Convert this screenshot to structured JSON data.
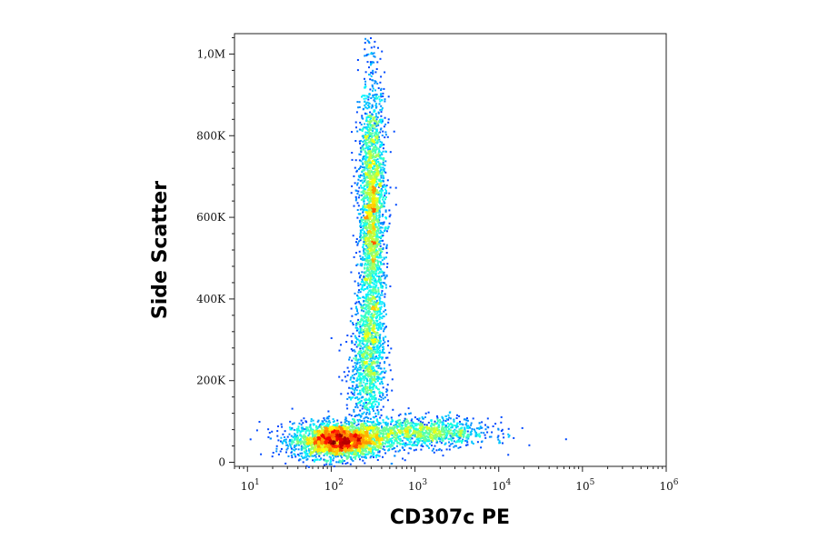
{
  "chart_data": {
    "type": "scatter",
    "title": "",
    "xlabel": "CD307c PE",
    "ylabel": "Side Scatter",
    "x_scale": "log",
    "xlim": [
      7,
      1000000
    ],
    "ylim": [
      -10000,
      1050000
    ],
    "grid": false,
    "legend": "none",
    "x_ticks": [
      {
        "value": 10,
        "base": "10",
        "exp": "1"
      },
      {
        "value": 100,
        "base": "10",
        "exp": "2"
      },
      {
        "value": 1000,
        "base": "10",
        "exp": "3"
      },
      {
        "value": 10000,
        "base": "10",
        "exp": "4"
      },
      {
        "value": 100000,
        "base": "10",
        "exp": "5"
      },
      {
        "value": 1000000,
        "base": "10",
        "exp": "6"
      }
    ],
    "y_ticks": [
      {
        "value": 0,
        "label": "0"
      },
      {
        "value": 200000,
        "label": "200K"
      },
      {
        "value": 400000,
        "label": "400K"
      },
      {
        "value": 600000,
        "label": "600K"
      },
      {
        "value": 800000,
        "label": "800K"
      },
      {
        "value": 1000000,
        "label": "1,0M"
      }
    ],
    "colormap": "density-jet",
    "populations": [
      {
        "x_center": 120,
        "y_center": 55000,
        "x_spread_decades": 0.28,
        "y_spread": 22000,
        "events": 2600
      },
      {
        "x_center": 1200,
        "y_center": 75000,
        "x_spread_decades": 0.4,
        "y_spread": 18000,
        "events": 1100
      },
      {
        "x_center": 300,
        "y_center": 620000,
        "x_spread_decades": 0.08,
        "y_spread": 160000,
        "events": 2400
      },
      {
        "x_center": 280,
        "y_center": 300000,
        "x_spread_decades": 0.09,
        "y_spread": 70000,
        "events": 700
      },
      {
        "x_center": 250,
        "y_center": 180000,
        "x_spread_decades": 0.12,
        "y_spread": 60000,
        "events": 400
      }
    ]
  }
}
